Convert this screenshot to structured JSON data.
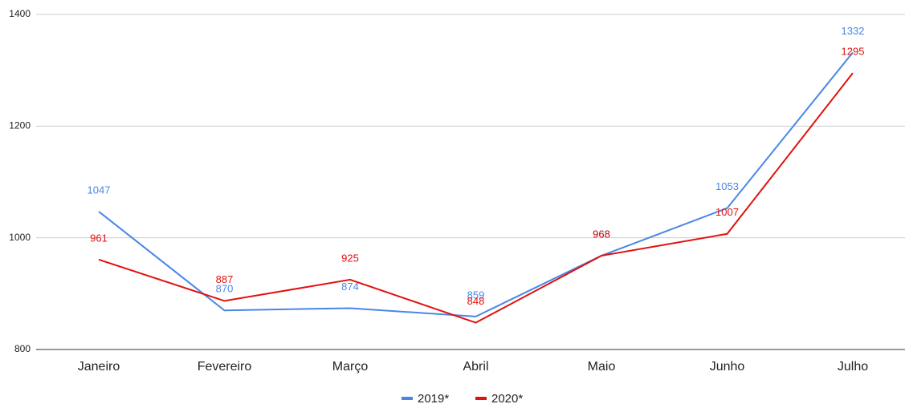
{
  "chart_data": {
    "type": "line",
    "categories": [
      "Janeiro",
      "Fevereiro",
      "Março",
      "Abril",
      "Maio",
      "Junho",
      "Julho"
    ],
    "series": [
      {
        "name": "2019*",
        "color": "#4a86e8",
        "values": [
          1047,
          870,
          874,
          859,
          968,
          1053,
          1332
        ]
      },
      {
        "name": "2020*",
        "color": "#e0120f",
        "values": [
          961,
          887,
          925,
          848,
          968,
          1007,
          1295
        ]
      }
    ],
    "ylim": [
      800,
      1400
    ],
    "yticks": [
      800,
      1000,
      1200,
      1400
    ],
    "grid": true,
    "legend": "bottom"
  }
}
